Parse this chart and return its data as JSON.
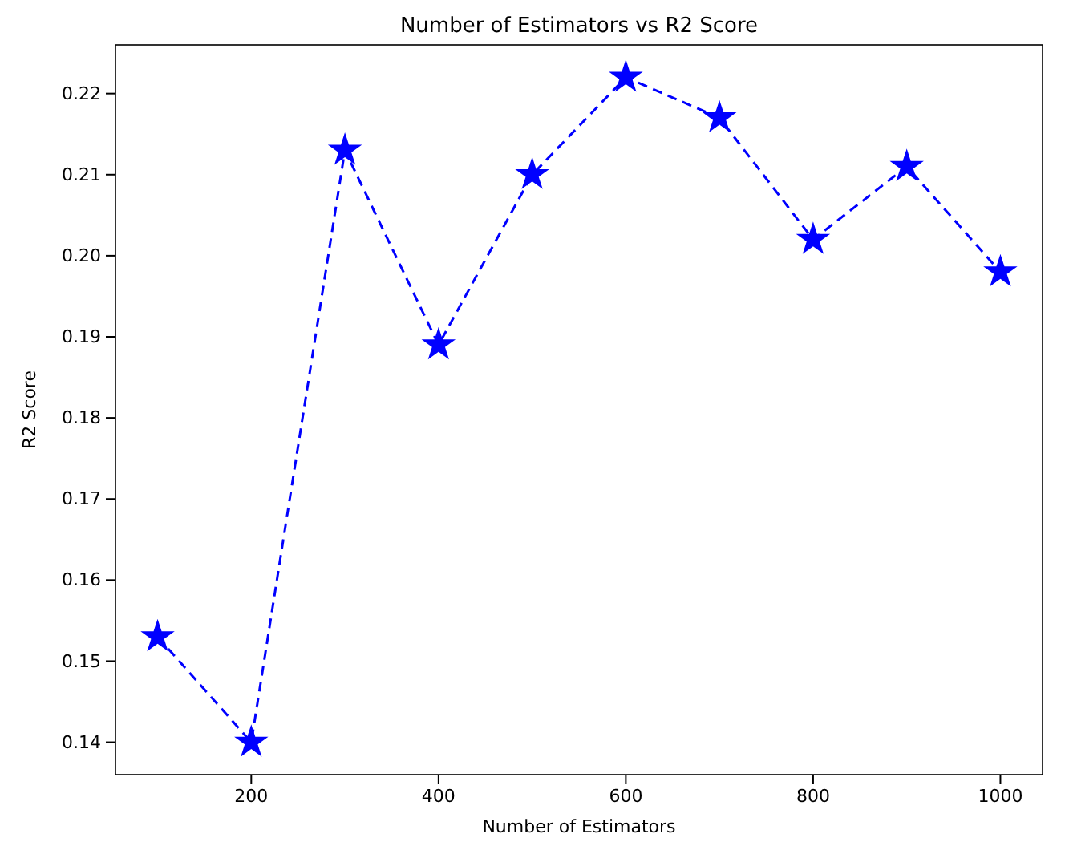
{
  "chart_data": {
    "type": "line",
    "title": "Number of Estimators vs R2 Score",
    "xlabel": "Number of Estimators",
    "ylabel": "R2 Score",
    "x": [
      100,
      200,
      300,
      400,
      500,
      600,
      700,
      800,
      900,
      1000
    ],
    "series": [
      {
        "color": "#0000ff",
        "values": [
          0.153,
          0.14,
          0.213,
          0.189,
          0.21,
          0.222,
          0.217,
          0.202,
          0.211,
          0.198
        ]
      }
    ],
    "marker": "star",
    "line_style": "dashed",
    "grid": false,
    "xlim": [
      55,
      1045
    ],
    "xticks": [
      200,
      400,
      600,
      800,
      1000
    ],
    "ylim": [
      0.136,
      0.226
    ],
    "yticks": [
      0.14,
      0.15,
      0.16,
      0.17,
      0.18,
      0.19,
      {
        "value": 0.2,
        "label": "0.20"
      },
      0.21,
      0.22
    ]
  }
}
